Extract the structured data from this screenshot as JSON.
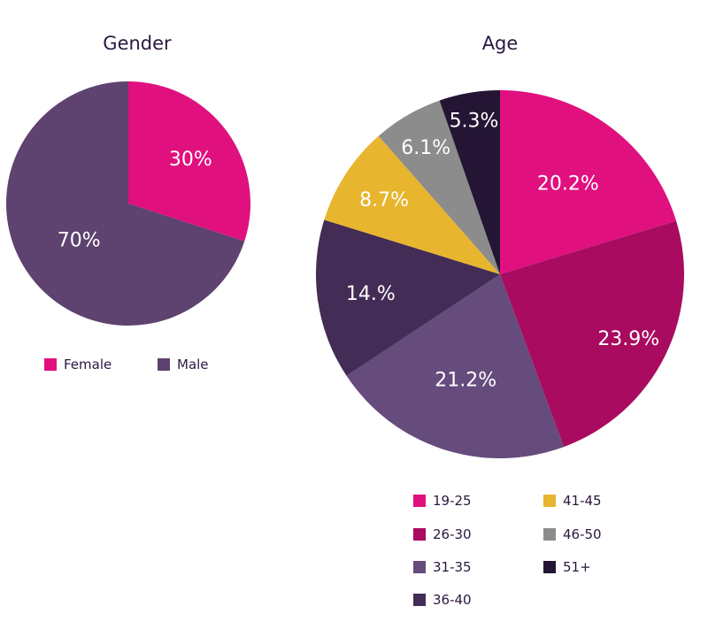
{
  "chart_data": [
    {
      "type": "pie",
      "title": "Gender",
      "slices": [
        {
          "label": "Female",
          "value": 30,
          "display": "30%",
          "color": "#e0107f"
        },
        {
          "label": "Male",
          "value": 70,
          "display": "70%",
          "color": "#5e426f"
        }
      ],
      "legend_position": "bottom"
    },
    {
      "type": "pie",
      "title": "Age",
      "slices": [
        {
          "label": "19-25",
          "value": 20.2,
          "display": "20.2%",
          "color": "#e0107f"
        },
        {
          "label": "26-30",
          "value": 23.9,
          "display": "23.9%",
          "color": "#a80b5f"
        },
        {
          "label": "31-35",
          "value": 21.2,
          "display": "21.2%",
          "color": "#664b7d"
        },
        {
          "label": "36-40",
          "value": 14.0,
          "display": "14.%",
          "color": "#432c55"
        },
        {
          "label": "41-45",
          "value": 8.7,
          "display": "8.7%",
          "color": "#e8b52f"
        },
        {
          "label": "46-50",
          "value": 6.1,
          "display": "6.1%",
          "color": "#8c8c8c"
        },
        {
          "label": "51+",
          "value": 5.3,
          "display": "5.3%",
          "color": "#231533"
        }
      ],
      "legend_position": "bottom"
    }
  ]
}
